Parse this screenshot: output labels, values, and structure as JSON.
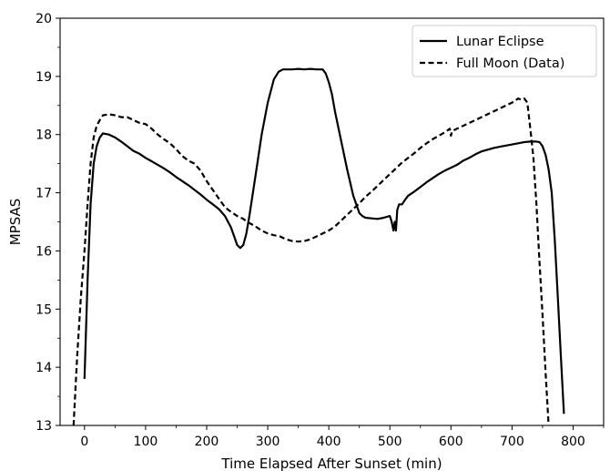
{
  "chart_data": {
    "type": "line",
    "xlabel": "Time Elapsed After Sunset (min)",
    "ylabel": "MPSAS",
    "xlim": [
      -40,
      850
    ],
    "ylim": [
      13,
      20
    ],
    "xticks": [
      0,
      100,
      200,
      300,
      400,
      500,
      600,
      700,
      800
    ],
    "yticks": [
      13,
      14,
      15,
      16,
      17,
      18,
      19,
      20
    ],
    "grid": false,
    "legend_position": "top-right",
    "series": [
      {
        "name": "Lunar Eclipse",
        "style": "solid",
        "color": "#000000",
        "x": [
          0,
          5,
          10,
          15,
          20,
          25,
          30,
          40,
          50,
          60,
          70,
          80,
          90,
          100,
          110,
          120,
          130,
          140,
          150,
          160,
          170,
          180,
          190,
          200,
          210,
          220,
          230,
          240,
          245,
          250,
          255,
          260,
          265,
          270,
          280,
          290,
          300,
          310,
          318,
          325,
          330,
          340,
          350,
          360,
          370,
          380,
          390,
          395,
          400,
          405,
          410,
          420,
          430,
          440,
          450,
          455,
          460,
          470,
          480,
          490,
          500,
          503,
          506,
          508,
          510,
          512,
          515,
          520,
          525,
          530,
          540,
          550,
          560,
          570,
          580,
          590,
          600,
          610,
          620,
          630,
          640,
          650,
          660,
          670,
          680,
          690,
          700,
          710,
          720,
          730,
          740,
          745,
          750,
          755,
          760,
          765,
          770,
          775,
          780,
          785
        ],
        "y": [
          13.8,
          15.5,
          16.8,
          17.5,
          17.8,
          17.95,
          18.02,
          18.0,
          17.95,
          17.88,
          17.8,
          17.72,
          17.67,
          17.6,
          17.54,
          17.48,
          17.42,
          17.35,
          17.27,
          17.2,
          17.13,
          17.05,
          16.97,
          16.88,
          16.8,
          16.72,
          16.6,
          16.4,
          16.25,
          16.1,
          16.05,
          16.1,
          16.3,
          16.6,
          17.3,
          18.0,
          18.55,
          18.95,
          19.08,
          19.12,
          19.12,
          19.12,
          19.13,
          19.12,
          19.13,
          19.12,
          19.12,
          19.05,
          18.9,
          18.7,
          18.4,
          17.9,
          17.4,
          16.95,
          16.65,
          16.6,
          16.57,
          16.56,
          16.55,
          16.57,
          16.6,
          16.5,
          16.35,
          16.5,
          16.35,
          16.7,
          16.8,
          16.8,
          16.88,
          16.95,
          17.02,
          17.1,
          17.18,
          17.25,
          17.32,
          17.38,
          17.43,
          17.48,
          17.55,
          17.6,
          17.66,
          17.71,
          17.74,
          17.77,
          17.79,
          17.81,
          17.83,
          17.85,
          17.87,
          17.88,
          17.88,
          17.87,
          17.8,
          17.65,
          17.4,
          17.0,
          16.2,
          15.2,
          14.2,
          13.2
        ]
      },
      {
        "name": "Full Moon (Data)",
        "style": "dashed",
        "color": "#000000",
        "x": [
          -18,
          -12,
          -6,
          0,
          5,
          10,
          15,
          20,
          25,
          30,
          40,
          50,
          60,
          70,
          80,
          90,
          100,
          110,
          120,
          130,
          140,
          150,
          160,
          170,
          180,
          190,
          200,
          210,
          220,
          230,
          240,
          250,
          260,
          270,
          280,
          290,
          300,
          310,
          320,
          330,
          340,
          350,
          360,
          370,
          380,
          390,
          400,
          410,
          420,
          430,
          440,
          450,
          460,
          470,
          480,
          490,
          500,
          510,
          520,
          530,
          540,
          550,
          560,
          570,
          580,
          590,
          598,
          600,
          602,
          610,
          620,
          630,
          640,
          650,
          660,
          670,
          680,
          690,
          700,
          705,
          710,
          715,
          720,
          725,
          730,
          735,
          740,
          745,
          750,
          755,
          760
        ],
        "y": [
          13.0,
          14.2,
          15.2,
          16.0,
          16.8,
          17.5,
          17.95,
          18.15,
          18.25,
          18.33,
          18.35,
          18.33,
          18.3,
          18.3,
          18.25,
          18.2,
          18.18,
          18.1,
          18.0,
          17.92,
          17.85,
          17.75,
          17.63,
          17.55,
          17.5,
          17.38,
          17.2,
          17.05,
          16.9,
          16.75,
          16.67,
          16.6,
          16.55,
          16.48,
          16.42,
          16.35,
          16.3,
          16.27,
          16.25,
          16.2,
          16.17,
          16.16,
          16.17,
          16.2,
          16.25,
          16.3,
          16.35,
          16.42,
          16.52,
          16.62,
          16.72,
          16.82,
          16.93,
          17.02,
          17.12,
          17.22,
          17.32,
          17.42,
          17.52,
          17.6,
          17.68,
          17.77,
          17.85,
          17.92,
          17.98,
          18.04,
          18.1,
          17.98,
          18.06,
          18.1,
          18.15,
          18.2,
          18.25,
          18.3,
          18.35,
          18.4,
          18.45,
          18.5,
          18.55,
          18.58,
          18.62,
          18.6,
          18.62,
          18.55,
          18.1,
          17.6,
          16.8,
          15.8,
          14.9,
          13.9,
          13.0
        ]
      }
    ]
  }
}
